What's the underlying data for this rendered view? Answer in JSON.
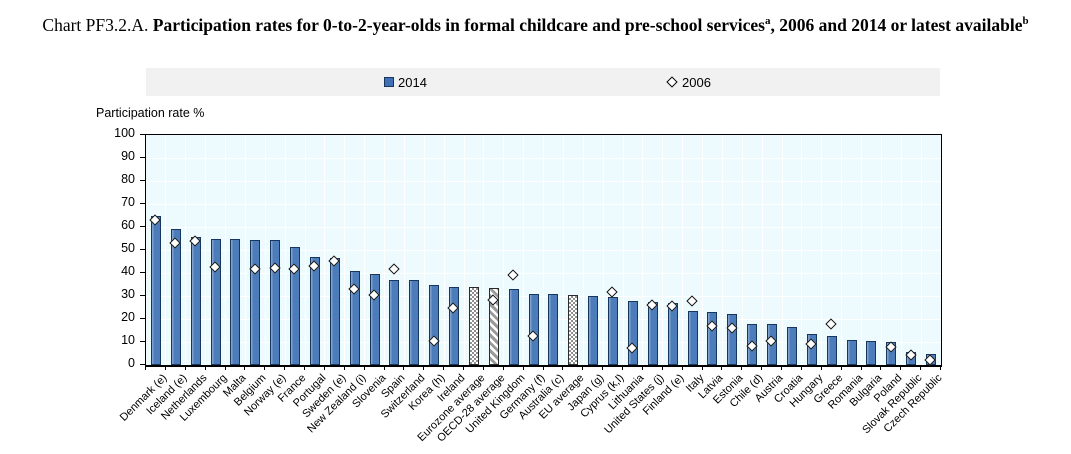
{
  "title": {
    "prefix": "Chart PF3.2.A.",
    "bold_part_1": "Participation rates for 0-to-2-year-olds in formal childcare and pre-school services",
    "superscript_a": "a",
    "bold_part_2": ", 2006 and 2014 or latest available",
    "superscript_b": "b"
  },
  "legend": {
    "items": [
      {
        "label": "2014",
        "marker": "blue-square"
      },
      {
        "label": "2006",
        "marker": "white-diamond"
      }
    ]
  },
  "axis": {
    "y_title": "Participation rate %"
  },
  "chart_data": {
    "type": "bar",
    "title": "Chart PF3.2.A. Participation rates for 0-to-2-year-olds in formal childcare and pre-school services (a), 2006 and 2014 or latest available (b)",
    "xlabel": "",
    "ylabel": "Participation rate %",
    "ylim": [
      0,
      100
    ],
    "y_ticks": [
      0,
      10,
      20,
      30,
      40,
      50,
      60,
      70,
      80,
      90,
      100
    ],
    "grid": true,
    "legend_position": "top",
    "categories": [
      "Denmark (e)",
      "Iceland (e)",
      "Netherlands",
      "Luxembourg",
      "Malta",
      "Belgium",
      "Norway (e)",
      "France",
      "Portugal",
      "Sweden (e)",
      "New Zealand (i)",
      "Slovenia",
      "Spain",
      "Switzerland",
      "Korea (h)",
      "Ireland",
      "Eurozone average",
      "OECD-28 average",
      "United Kingdom",
      "Germany (f)",
      "Australia (c)",
      "EU average",
      "Japan (g)",
      "Cyprus (k,l)",
      "Lithuania",
      "United States (j)",
      "Finland (e)",
      "Italy",
      "Latvia",
      "Estonia",
      "Chile (d)",
      "Austria",
      "Croatia",
      "Hungary",
      "Greece",
      "Romania",
      "Bulgaria",
      "Poland",
      "Slovak Republic",
      "Czech Republic"
    ],
    "series": [
      {
        "name": "2014",
        "type": "bar",
        "values": [
          65,
          59,
          55.5,
          54.7,
          54.6,
          54.5,
          54.4,
          51.5,
          47,
          46.5,
          41,
          39.5,
          37,
          37,
          35,
          34,
          34,
          33.5,
          33,
          31,
          31,
          30.5,
          30,
          29.5,
          28,
          27.5,
          27,
          23.5,
          23,
          22,
          18,
          18,
          16.5,
          13.5,
          12.5,
          11,
          10.5,
          10,
          5.5,
          5
        ]
      },
      {
        "name": "2006",
        "type": "scatter",
        "marker": "diamond",
        "values": [
          63,
          53,
          53.5,
          42.5,
          null,
          41.5,
          42,
          41.5,
          43,
          45,
          33,
          30,
          41.5,
          null,
          10,
          24.5,
          null,
          28,
          39,
          12.5,
          null,
          null,
          null,
          31.5,
          7,
          26,
          25.5,
          27.5,
          16.5,
          16,
          8,
          10,
          null,
          9,
          17.5,
          null,
          null,
          7.5,
          4,
          2
        ]
      }
    ],
    "bar_styles": {
      "16": "checker",
      "17": "diagonal",
      "21": "checker"
    }
  },
  "colors": {
    "bar_fill": "#4c7cba",
    "bar_border": "#17365d",
    "plot_bg": "#eefbfe",
    "gridline": "#ffffff",
    "legend_bg": "#f1f1f1",
    "pattern_gray": "#8f8f8f",
    "axis_line": "#000000"
  }
}
